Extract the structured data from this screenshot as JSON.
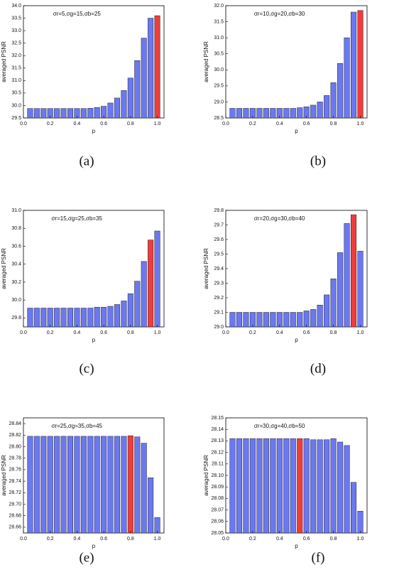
{
  "chart_data": [
    {
      "type": "bar",
      "title": "σr=5,σg=15,σb=25",
      "caption": "(a)",
      "xlabel": "p",
      "ylabel": "averaged PSNR",
      "x": [
        0.05,
        0.1,
        0.15,
        0.2,
        0.25,
        0.3,
        0.35,
        0.4,
        0.45,
        0.5,
        0.55,
        0.6,
        0.65,
        0.7,
        0.75,
        0.8,
        0.85,
        0.9,
        0.95,
        1.0
      ],
      "values": [
        29.88,
        29.88,
        29.88,
        29.88,
        29.88,
        29.88,
        29.88,
        29.88,
        29.88,
        29.89,
        29.92,
        29.97,
        30.1,
        30.3,
        30.6,
        31.1,
        31.8,
        32.7,
        33.5,
        33.6
      ],
      "color": "#6b78f0",
      "highlight": {
        "index": 19,
        "color": "#f03c3c"
      },
      "xlim": [
        0,
        1.05
      ],
      "xticks": [
        {
          "value": 0,
          "label": "0.0"
        },
        0.2,
        0.4,
        0.6,
        0.8,
        {
          "value": 1,
          "label": "1.0"
        }
      ],
      "ylim": [
        29.5,
        34.0
      ],
      "yticks": [
        29.5,
        {
          "value": 30,
          "label": "30.0"
        },
        30.5,
        {
          "value": 31,
          "label": "31.0"
        },
        31.5,
        {
          "value": 32,
          "label": "32.0"
        },
        32.5,
        {
          "value": 33,
          "label": "33.0"
        },
        33.5,
        {
          "value": 34,
          "label": "34.0"
        }
      ]
    },
    {
      "type": "bar",
      "title": "σr=10,σg=20,σb=30",
      "caption": "(b)",
      "xlabel": "p",
      "ylabel": "averaged PSNR",
      "x": [
        0.05,
        0.1,
        0.15,
        0.2,
        0.25,
        0.3,
        0.35,
        0.4,
        0.45,
        0.5,
        0.55,
        0.6,
        0.65,
        0.7,
        0.75,
        0.8,
        0.85,
        0.9,
        0.95,
        1.0
      ],
      "values": [
        28.8,
        28.8,
        28.8,
        28.8,
        28.8,
        28.8,
        28.8,
        28.8,
        28.8,
        28.8,
        28.82,
        28.85,
        28.9,
        29.0,
        29.2,
        29.6,
        30.2,
        31.0,
        31.8,
        31.85
      ],
      "color": "#6b78f0",
      "highlight": {
        "index": 19,
        "color": "#f03c3c"
      },
      "xlim": [
        0,
        1.05
      ],
      "xticks": [
        {
          "value": 0,
          "label": "0.0"
        },
        0.2,
        0.4,
        0.6,
        0.8,
        {
          "value": 1,
          "label": "1.0"
        }
      ],
      "ylim": [
        28.5,
        32.0
      ],
      "yticks": [
        28.5,
        {
          "value": 29,
          "label": "29.0"
        },
        29.5,
        {
          "value": 30,
          "label": "30.0"
        },
        30.5,
        {
          "value": 31,
          "label": "31.0"
        },
        31.5,
        {
          "value": 32,
          "label": "32.0"
        }
      ]
    },
    {
      "type": "bar",
      "title": "σr=15,σg=25,σb=35",
      "caption": "(c)",
      "xlabel": "p",
      "ylabel": "averaged PSNR",
      "x": [
        0.05,
        0.1,
        0.15,
        0.2,
        0.25,
        0.3,
        0.35,
        0.4,
        0.45,
        0.5,
        0.55,
        0.6,
        0.65,
        0.7,
        0.75,
        0.8,
        0.85,
        0.9,
        0.95,
        1.0
      ],
      "values": [
        29.91,
        29.91,
        29.91,
        29.91,
        29.91,
        29.91,
        29.91,
        29.91,
        29.91,
        29.91,
        29.92,
        29.92,
        29.93,
        29.95,
        29.99,
        30.07,
        30.21,
        30.43,
        30.67,
        30.77
      ],
      "color": "#6b78f0",
      "highlight": {
        "index": 18,
        "color": "#f03c3c"
      },
      "xlim": [
        0,
        1.05
      ],
      "xticks": [
        {
          "value": 0,
          "label": "0.0"
        },
        0.2,
        0.4,
        0.6,
        0.8,
        {
          "value": 1,
          "label": "1.0"
        }
      ],
      "ylim": [
        29.7,
        31.0
      ],
      "yticks": [
        29.8,
        {
          "value": 30,
          "label": "30.0"
        },
        30.2,
        30.4,
        30.6,
        30.8,
        {
          "value": 31,
          "label": "31.0"
        }
      ]
    },
    {
      "type": "bar",
      "title": "σr=20,σg=30,σb=40",
      "caption": "(d)",
      "xlabel": "p",
      "ylabel": "averaged PSNR",
      "x": [
        0.05,
        0.1,
        0.15,
        0.2,
        0.25,
        0.3,
        0.35,
        0.4,
        0.45,
        0.5,
        0.55,
        0.6,
        0.65,
        0.7,
        0.75,
        0.8,
        0.85,
        0.9,
        0.95,
        1.0
      ],
      "values": [
        29.1,
        29.1,
        29.1,
        29.1,
        29.1,
        29.1,
        29.1,
        29.1,
        29.1,
        29.1,
        29.1,
        29.11,
        29.12,
        29.15,
        29.22,
        29.33,
        29.51,
        29.71,
        29.77,
        29.52
      ],
      "color": "#6b78f0",
      "highlight": {
        "index": 18,
        "color": "#f03c3c"
      },
      "xlim": [
        0,
        1.05
      ],
      "xticks": [
        {
          "value": 0,
          "label": "0.0"
        },
        0.2,
        0.4,
        0.6,
        0.8,
        {
          "value": 1,
          "label": "1.0"
        }
      ],
      "ylim": [
        29.0,
        29.8
      ],
      "yticks": [
        {
          "value": 29,
          "label": "29.0"
        },
        29.1,
        29.2,
        29.3,
        29.4,
        29.5,
        29.6,
        29.7,
        29.8
      ]
    },
    {
      "type": "bar",
      "title": "σr=25,σg=35,σb=45",
      "caption": "(e)",
      "xlabel": "p",
      "ylabel": "averaged PSNR",
      "x": [
        0.05,
        0.1,
        0.15,
        0.2,
        0.25,
        0.3,
        0.35,
        0.4,
        0.45,
        0.5,
        0.55,
        0.6,
        0.65,
        0.7,
        0.75,
        0.8,
        0.85,
        0.9,
        0.95,
        1.0
      ],
      "values": [
        28.818,
        28.818,
        28.818,
        28.818,
        28.818,
        28.818,
        28.818,
        28.818,
        28.818,
        28.818,
        28.818,
        28.818,
        28.818,
        28.818,
        28.818,
        28.819,
        28.817,
        28.806,
        28.746,
        28.677
      ],
      "color": "#6b78f0",
      "highlight": {
        "index": 15,
        "color": "#f03c3c"
      },
      "xlim": [
        0,
        1.05
      ],
      "xticks": [
        {
          "value": 0,
          "label": "0.0"
        },
        0.2,
        0.4,
        0.6,
        0.8,
        {
          "value": 1,
          "label": "1.0"
        }
      ],
      "ylim": [
        28.65,
        28.85
      ],
      "yticks": [
        28.66,
        28.68,
        {
          "value": 28.7,
          "label": "28.70"
        },
        28.72,
        28.74,
        28.76,
        28.78,
        {
          "value": 28.8,
          "label": "28.80"
        },
        28.82,
        28.84
      ]
    },
    {
      "type": "bar",
      "title": "σr=30,σg=40,σb=50",
      "caption": "(f)",
      "xlabel": "p",
      "ylabel": "averaged PSNR",
      "x": [
        0.05,
        0.1,
        0.15,
        0.2,
        0.25,
        0.3,
        0.35,
        0.4,
        0.45,
        0.5,
        0.55,
        0.6,
        0.65,
        0.7,
        0.75,
        0.8,
        0.85,
        0.9,
        0.95,
        1.0
      ],
      "values": [
        28.132,
        28.132,
        28.132,
        28.132,
        28.132,
        28.132,
        28.132,
        28.132,
        28.132,
        28.132,
        28.132,
        28.132,
        28.131,
        28.131,
        28.131,
        28.132,
        28.129,
        28.126,
        28.094,
        28.069
      ],
      "color": "#6b78f0",
      "highlight": {
        "index": 10,
        "color": "#f03c3c"
      },
      "xlim": [
        0,
        1.05
      ],
      "xticks": [
        {
          "value": 0,
          "label": "0.0"
        },
        0.2,
        0.4,
        0.6,
        0.8,
        {
          "value": 1,
          "label": "1.0"
        }
      ],
      "ylim": [
        28.05,
        28.15
      ],
      "yticks": [
        {
          "value": 28.05,
          "label": "28.05"
        },
        {
          "value": 28.06,
          "label": "28.06"
        },
        28.07,
        28.08,
        28.09,
        {
          "value": 28.1,
          "label": "28.10"
        },
        28.11,
        28.12,
        28.13,
        28.14,
        28.15
      ]
    }
  ]
}
